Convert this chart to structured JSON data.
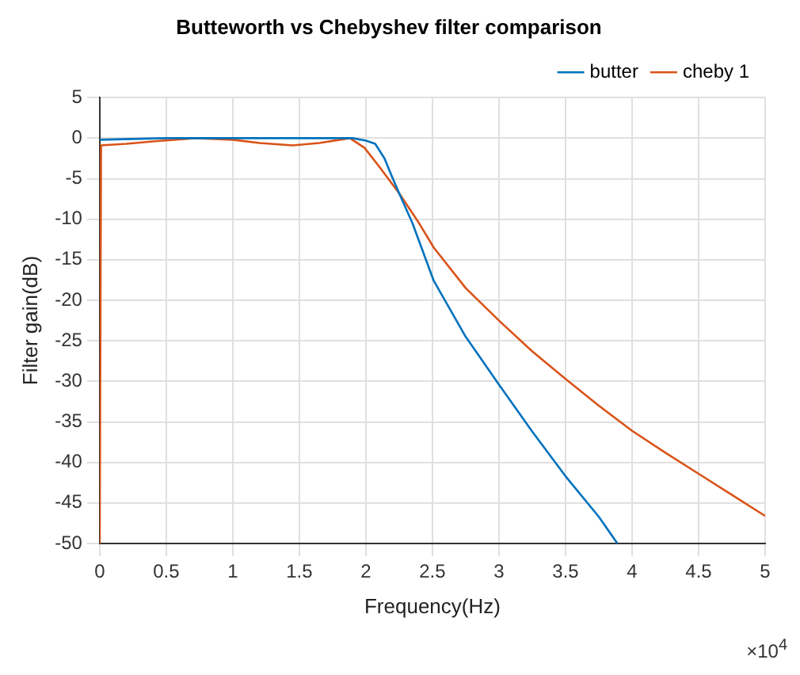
{
  "chart_data": {
    "type": "line",
    "title": "Butteworth vs Chebyshev filter comparison",
    "xlabel": "Frequency(Hz)",
    "ylabel": "Filter gain(dB)",
    "annotations": [
      "×10$^{4}$"
    ],
    "xlim": [
      0,
      5
    ],
    "xticks": [
      0,
      0.5,
      1,
      1.5,
      2,
      2.5,
      3,
      3.5,
      4,
      4.5,
      5
    ],
    "ylim": [
      -50,
      5
    ],
    "yticks": [
      -50,
      -45,
      -40,
      -35,
      -30,
      -25,
      -20,
      -15,
      -10,
      -5,
      0,
      5
    ],
    "grid": true,
    "legend": "top right",
    "marker": "none",
    "line_style": "solid",
    "series": [
      {
        "name": "butter",
        "color": "#0072bd",
        "x": [
          0,
          0.5,
          1,
          1.5,
          1.9,
          2.0,
          2.07,
          2.14,
          2.19,
          2.25,
          2.35,
          2.51,
          2.75,
          3.0,
          3.25,
          3.5,
          3.75,
          3.89
        ],
        "values": [
          -0.2,
          0,
          0,
          0,
          0,
          -0.3,
          -0.7,
          -2.5,
          -4.5,
          -6.8,
          -10.5,
          -17.6,
          -24.5,
          -30.4,
          -36.2,
          -41.7,
          -46.7,
          -50
        ]
      },
      {
        "name": "cheby 1",
        "color": "#d95319",
        "x": [
          0,
          0.01,
          0.2,
          0.4,
          0.72,
          1.0,
          1.2,
          1.45,
          1.65,
          1.88,
          1.99,
          2.1,
          2.25,
          2.4,
          2.51,
          2.75,
          3.0,
          3.25,
          3.5,
          3.75,
          4.0,
          4.25,
          4.5,
          4.75,
          5.0
        ],
        "values": [
          -50,
          -0.9,
          -0.7,
          -0.4,
          0,
          -0.2,
          -0.6,
          -0.9,
          -0.6,
          0,
          -1.2,
          -3.5,
          -6.8,
          -10.5,
          -13.5,
          -18.5,
          -22.5,
          -26.3,
          -29.7,
          -33,
          -36.1,
          -38.8,
          -41.4,
          -44,
          -46.6
        ]
      }
    ]
  }
}
